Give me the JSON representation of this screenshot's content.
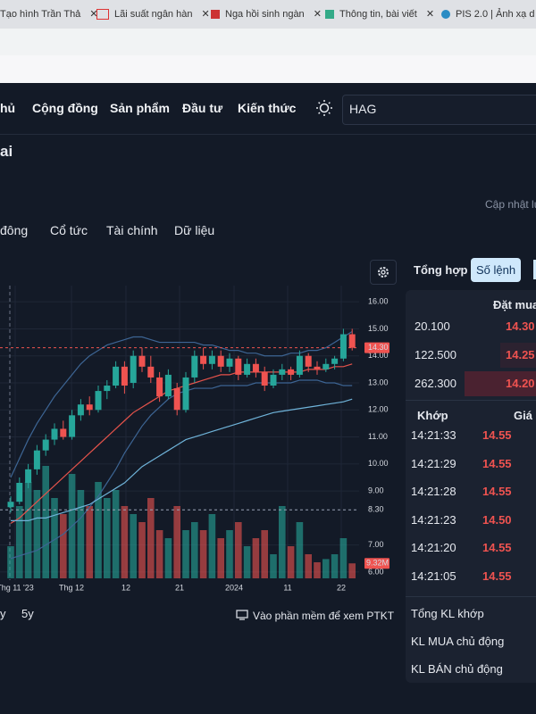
{
  "browser": {
    "tabs": [
      "Tạo hình Trần Thả",
      "Lãi suất ngân hàn",
      "Nga hồi sinh ngàn",
      "Thông tin, bài viết",
      "PIS 2.0 | Ảnh xạ d"
    ]
  },
  "nav": {
    "items": [
      "hủ",
      "Cộng đồng",
      "Sản phẩm",
      "Đầu tư",
      "Kiến thức"
    ],
    "search": "HAG"
  },
  "page": {
    "heading": "ai",
    "updated": "Cập nhật lú",
    "tabs": [
      "đông",
      "Cổ tức",
      "Tài chính",
      "Dữ liệu"
    ],
    "ranges": [
      "y",
      "5y"
    ],
    "ptkt": "Vào phần mềm để xem PTKT"
  },
  "chart_data": {
    "type": "candlestick",
    "xlabels": [
      "Thg 11 '23",
      "Thg 12",
      "12",
      "21",
      "2024",
      "11",
      "22"
    ],
    "open": [
      8.4,
      8.6,
      9.3,
      9.8,
      10.5,
      10.9,
      11.3,
      11.0,
      11.8,
      12.2,
      12.0,
      12.7,
      12.9,
      13.6,
      13.0,
      14.0,
      13.6,
      13.2,
      12.5,
      12.8,
      12.0,
      13.2,
      14.0,
      13.7,
      14.0,
      13.6,
      13.9,
      13.3,
      13.7,
      13.4,
      12.9,
      13.3,
      13.5,
      13.3,
      14.0,
      13.6,
      13.5,
      13.7,
      13.9,
      14.8
    ],
    "high": [
      8.8,
      9.5,
      10.0,
      10.7,
      11.1,
      11.5,
      11.6,
      12.0,
      12.4,
      12.5,
      12.9,
      13.1,
      13.8,
      13.8,
      14.2,
      14.3,
      14.0,
      13.4,
      13.5,
      13.0,
      13.4,
      14.2,
      14.3,
      14.2,
      14.2,
      14.1,
      14.0,
      13.9,
      13.9,
      13.6,
      13.5,
      13.7,
      13.6,
      14.2,
      14.1,
      13.8,
      13.9,
      14.0,
      15.0,
      15.0
    ],
    "low": [
      8.2,
      8.5,
      9.1,
      9.6,
      10.3,
      10.7,
      10.9,
      10.9,
      11.6,
      11.8,
      11.9,
      12.4,
      12.8,
      12.6,
      12.8,
      13.4,
      13.0,
      12.3,
      12.4,
      11.8,
      11.9,
      13.0,
      13.5,
      13.5,
      13.4,
      13.4,
      13.1,
      13.2,
      13.2,
      12.7,
      12.8,
      13.1,
      13.1,
      13.2,
      13.4,
      13.3,
      13.4,
      13.5,
      13.8,
      14.2
    ],
    "close": [
      8.6,
      9.3,
      9.8,
      10.5,
      10.9,
      11.3,
      11.0,
      11.8,
      12.2,
      12.0,
      12.7,
      12.9,
      13.6,
      12.9,
      14.0,
      13.6,
      13.2,
      12.5,
      13.3,
      12.0,
      13.2,
      14.0,
      13.7,
      14.0,
      13.6,
      13.9,
      13.3,
      13.7,
      13.4,
      12.9,
      13.3,
      13.5,
      13.3,
      14.0,
      13.6,
      13.5,
      13.7,
      13.9,
      14.8,
      14.3
    ],
    "volume": [
      20,
      45,
      60,
      55,
      70,
      50,
      40,
      65,
      55,
      45,
      60,
      50,
      55,
      45,
      40,
      35,
      50,
      30,
      25,
      45,
      30,
      35,
      30,
      40,
      25,
      30,
      35,
      20,
      25,
      30,
      15,
      45,
      20,
      35,
      15,
      10,
      12,
      15,
      25,
      9.32
    ],
    "volume_label": "9.32M",
    "lines": [
      {
        "color": "#3d6594",
        "values": [
          9.5,
          10.2,
          10.9,
          11.5,
          12.0,
          12.5,
          12.9,
          13.3,
          13.7,
          14.0,
          14.2,
          14.4,
          14.5,
          14.6,
          14.7,
          14.7,
          14.6,
          14.5,
          14.5,
          14.5,
          14.5,
          14.5,
          14.4,
          14.4,
          14.3,
          14.2,
          14.2,
          14.1,
          14.1,
          14.0,
          14.0,
          14.0,
          14.1,
          14.1,
          14.2,
          14.2,
          14.3,
          14.5,
          14.7,
          14.9
        ]
      },
      {
        "color": "#3d6594",
        "values": [
          6.5,
          6.6,
          6.7,
          6.8,
          7.0,
          7.2,
          7.4,
          7.7,
          8.0,
          8.4,
          8.8,
          9.3,
          9.8,
          10.4,
          10.9,
          11.4,
          11.8,
          12.1,
          12.4,
          12.6,
          12.7,
          12.8,
          12.8,
          12.8,
          12.9,
          12.9,
          12.9,
          12.9,
          13.0,
          13.0,
          13.0,
          13.0,
          13.0,
          13.1,
          13.1,
          13.1,
          13.0,
          13.0,
          12.9,
          12.9
        ]
      },
      {
        "color": "#e5534b",
        "values": [
          7.8,
          8.0,
          8.3,
          8.6,
          8.9,
          9.2,
          9.5,
          9.8,
          10.1,
          10.4,
          10.7,
          11.0,
          11.3,
          11.6,
          11.9,
          12.1,
          12.3,
          12.5,
          12.7,
          12.8,
          12.9,
          13.0,
          13.1,
          13.2,
          13.3,
          13.3,
          13.4,
          13.4,
          13.4,
          13.4,
          13.4,
          13.4,
          13.4,
          13.4,
          13.5,
          13.5,
          13.5,
          13.6,
          13.6,
          13.7
        ]
      },
      {
        "color": "#6fb3d9",
        "values": [
          7.9,
          7.9,
          7.9,
          8.0,
          8.0,
          8.1,
          8.2,
          8.3,
          8.4,
          8.5,
          8.7,
          8.9,
          9.1,
          9.3,
          9.6,
          9.9,
          10.1,
          10.3,
          10.5,
          10.7,
          10.9,
          11.0,
          11.1,
          11.2,
          11.3,
          11.4,
          11.5,
          11.6,
          11.7,
          11.8,
          11.9,
          11.95,
          12.0,
          12.05,
          12.1,
          12.15,
          12.2,
          12.25,
          12.3,
          12.4
        ]
      }
    ],
    "price_lines": [
      {
        "value": 14.3,
        "label": "14.30",
        "color": "#ef5350"
      },
      {
        "value": 8.3,
        "label": "8.30",
        "color": "#9aa3b5"
      }
    ],
    "ylim": [
      5.7,
      16.6
    ],
    "yticks": [
      {
        "value": 16,
        "label": "16.00"
      },
      {
        "value": 15,
        "label": "15.00"
      },
      {
        "value": 14,
        "label": "14.00"
      },
      {
        "value": 13,
        "label": "13.00"
      },
      {
        "value": 12,
        "label": "12.00"
      },
      {
        "value": 11,
        "label": "11.00"
      },
      {
        "value": 10,
        "label": "10.00"
      },
      {
        "value": 9,
        "label": "9.00"
      },
      {
        "value": 7,
        "label": "7.00"
      },
      {
        "value": 6,
        "label": "6.00"
      }
    ],
    "up_color": "#26a69a",
    "down_color": "#ef5350",
    "grid": true
  },
  "panel": {
    "tabs": [
      "Tổng hợp",
      "Số lệnh"
    ],
    "bid_header": "Đặt mua",
    "bids": [
      [
        "20.100",
        "14.30"
      ],
      [
        "122.500",
        "14.25"
      ],
      [
        "262.300",
        "14.20"
      ]
    ],
    "trades_header": [
      "Khớp",
      "Giá"
    ],
    "trades": [
      [
        "14:21:33",
        "14.55"
      ],
      [
        "14:21:29",
        "14.55"
      ],
      [
        "14:21:28",
        "14.55"
      ],
      [
        "14:21:23",
        "14.50"
      ],
      [
        "14:21:20",
        "14.55"
      ],
      [
        "14:21:05",
        "14.55"
      ]
    ],
    "summary": [
      "Tổng KL khớp",
      "KL MUA chủ động",
      "KL BÁN chủ động"
    ]
  }
}
